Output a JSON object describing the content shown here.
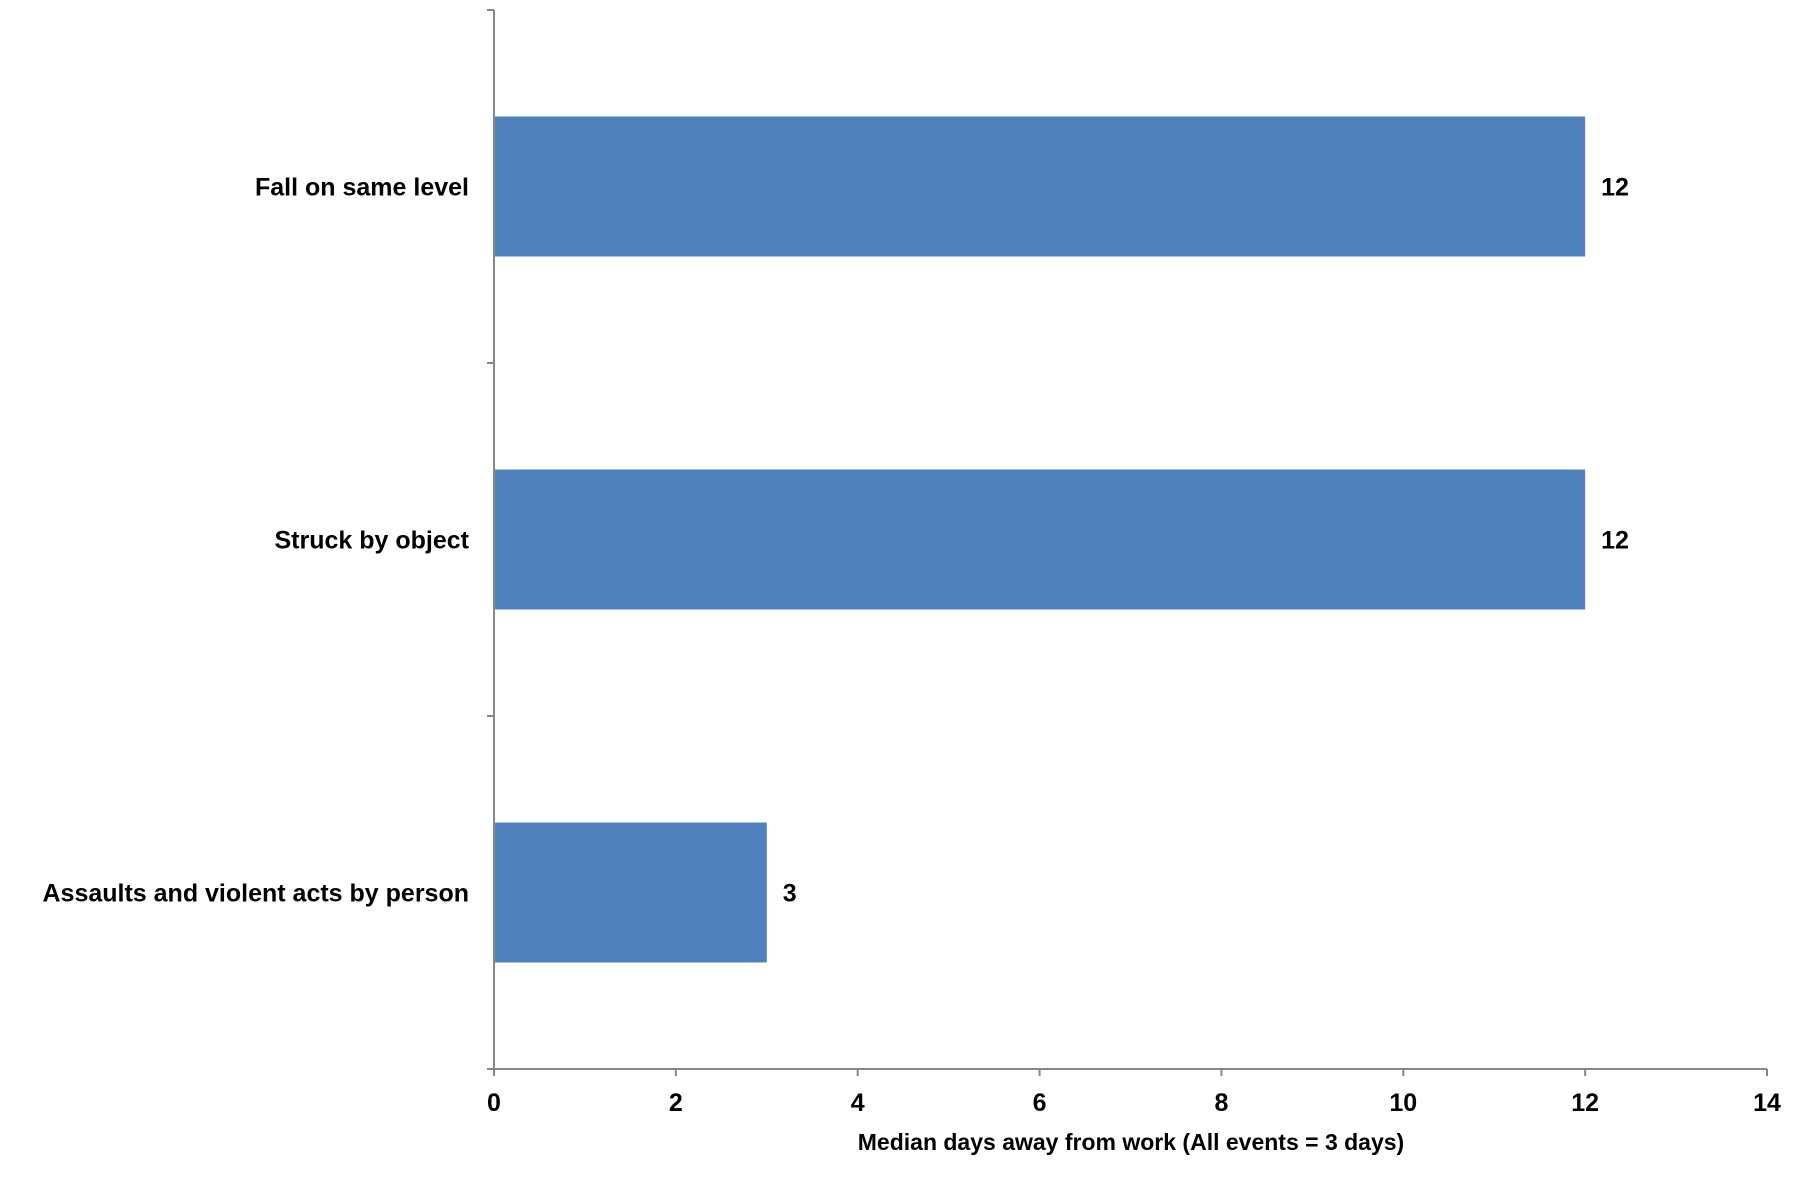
{
  "chart_data": {
    "type": "bar",
    "orientation": "horizontal",
    "categories": [
      "Fall on same level",
      "Struck by object",
      "Assaults and violent acts by person"
    ],
    "values": [
      12,
      12,
      3
    ],
    "data_labels": [
      "12",
      "12",
      "3"
    ],
    "xlabel": "Median days away from work (All events = 3 days)",
    "xlim": [
      0,
      14
    ],
    "xticks": [
      0,
      2,
      4,
      6,
      8,
      10,
      12,
      14
    ],
    "xtick_labels": [
      "0",
      "2",
      "4",
      "6",
      "8",
      "10",
      "12",
      "14"
    ],
    "grid": false,
    "legend": "none",
    "bar_color": "#4f81bd",
    "axis_color": "#868686"
  }
}
